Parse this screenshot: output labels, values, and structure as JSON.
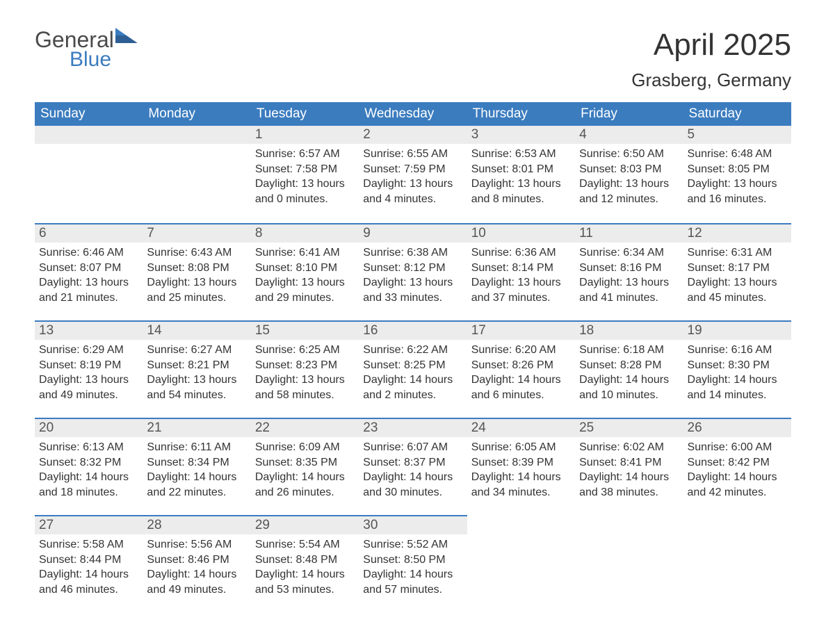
{
  "logo": {
    "general": "General",
    "blue": "Blue"
  },
  "title": "April 2025",
  "location": "Grasberg, Germany",
  "colors": {
    "header_bg": "#3b7cbf",
    "header_text": "#ffffff",
    "daynum_bg": "#ececec",
    "border_top": "#3b7cbf",
    "body_bg": "#ffffff",
    "text": "#333333"
  },
  "typography": {
    "title_fontsize": 44,
    "location_fontsize": 26,
    "weekday_fontsize": 19,
    "daynum_fontsize": 19,
    "body_fontsize": 16
  },
  "weekdays": [
    "Sunday",
    "Monday",
    "Tuesday",
    "Wednesday",
    "Thursday",
    "Friday",
    "Saturday"
  ],
  "weeks": [
    [
      null,
      null,
      {
        "n": "1",
        "sunrise": "Sunrise: 6:57 AM",
        "sunset": "Sunset: 7:58 PM",
        "dl1": "Daylight: 13 hours",
        "dl2": "and 0 minutes."
      },
      {
        "n": "2",
        "sunrise": "Sunrise: 6:55 AM",
        "sunset": "Sunset: 7:59 PM",
        "dl1": "Daylight: 13 hours",
        "dl2": "and 4 minutes."
      },
      {
        "n": "3",
        "sunrise": "Sunrise: 6:53 AM",
        "sunset": "Sunset: 8:01 PM",
        "dl1": "Daylight: 13 hours",
        "dl2": "and 8 minutes."
      },
      {
        "n": "4",
        "sunrise": "Sunrise: 6:50 AM",
        "sunset": "Sunset: 8:03 PM",
        "dl1": "Daylight: 13 hours",
        "dl2": "and 12 minutes."
      },
      {
        "n": "5",
        "sunrise": "Sunrise: 6:48 AM",
        "sunset": "Sunset: 8:05 PM",
        "dl1": "Daylight: 13 hours",
        "dl2": "and 16 minutes."
      }
    ],
    [
      {
        "n": "6",
        "sunrise": "Sunrise: 6:46 AM",
        "sunset": "Sunset: 8:07 PM",
        "dl1": "Daylight: 13 hours",
        "dl2": "and 21 minutes."
      },
      {
        "n": "7",
        "sunrise": "Sunrise: 6:43 AM",
        "sunset": "Sunset: 8:08 PM",
        "dl1": "Daylight: 13 hours",
        "dl2": "and 25 minutes."
      },
      {
        "n": "8",
        "sunrise": "Sunrise: 6:41 AM",
        "sunset": "Sunset: 8:10 PM",
        "dl1": "Daylight: 13 hours",
        "dl2": "and 29 minutes."
      },
      {
        "n": "9",
        "sunrise": "Sunrise: 6:38 AM",
        "sunset": "Sunset: 8:12 PM",
        "dl1": "Daylight: 13 hours",
        "dl2": "and 33 minutes."
      },
      {
        "n": "10",
        "sunrise": "Sunrise: 6:36 AM",
        "sunset": "Sunset: 8:14 PM",
        "dl1": "Daylight: 13 hours",
        "dl2": "and 37 minutes."
      },
      {
        "n": "11",
        "sunrise": "Sunrise: 6:34 AM",
        "sunset": "Sunset: 8:16 PM",
        "dl1": "Daylight: 13 hours",
        "dl2": "and 41 minutes."
      },
      {
        "n": "12",
        "sunrise": "Sunrise: 6:31 AM",
        "sunset": "Sunset: 8:17 PM",
        "dl1": "Daylight: 13 hours",
        "dl2": "and 45 minutes."
      }
    ],
    [
      {
        "n": "13",
        "sunrise": "Sunrise: 6:29 AM",
        "sunset": "Sunset: 8:19 PM",
        "dl1": "Daylight: 13 hours",
        "dl2": "and 49 minutes."
      },
      {
        "n": "14",
        "sunrise": "Sunrise: 6:27 AM",
        "sunset": "Sunset: 8:21 PM",
        "dl1": "Daylight: 13 hours",
        "dl2": "and 54 minutes."
      },
      {
        "n": "15",
        "sunrise": "Sunrise: 6:25 AM",
        "sunset": "Sunset: 8:23 PM",
        "dl1": "Daylight: 13 hours",
        "dl2": "and 58 minutes."
      },
      {
        "n": "16",
        "sunrise": "Sunrise: 6:22 AM",
        "sunset": "Sunset: 8:25 PM",
        "dl1": "Daylight: 14 hours",
        "dl2": "and 2 minutes."
      },
      {
        "n": "17",
        "sunrise": "Sunrise: 6:20 AM",
        "sunset": "Sunset: 8:26 PM",
        "dl1": "Daylight: 14 hours",
        "dl2": "and 6 minutes."
      },
      {
        "n": "18",
        "sunrise": "Sunrise: 6:18 AM",
        "sunset": "Sunset: 8:28 PM",
        "dl1": "Daylight: 14 hours",
        "dl2": "and 10 minutes."
      },
      {
        "n": "19",
        "sunrise": "Sunrise: 6:16 AM",
        "sunset": "Sunset: 8:30 PM",
        "dl1": "Daylight: 14 hours",
        "dl2": "and 14 minutes."
      }
    ],
    [
      {
        "n": "20",
        "sunrise": "Sunrise: 6:13 AM",
        "sunset": "Sunset: 8:32 PM",
        "dl1": "Daylight: 14 hours",
        "dl2": "and 18 minutes."
      },
      {
        "n": "21",
        "sunrise": "Sunrise: 6:11 AM",
        "sunset": "Sunset: 8:34 PM",
        "dl1": "Daylight: 14 hours",
        "dl2": "and 22 minutes."
      },
      {
        "n": "22",
        "sunrise": "Sunrise: 6:09 AM",
        "sunset": "Sunset: 8:35 PM",
        "dl1": "Daylight: 14 hours",
        "dl2": "and 26 minutes."
      },
      {
        "n": "23",
        "sunrise": "Sunrise: 6:07 AM",
        "sunset": "Sunset: 8:37 PM",
        "dl1": "Daylight: 14 hours",
        "dl2": "and 30 minutes."
      },
      {
        "n": "24",
        "sunrise": "Sunrise: 6:05 AM",
        "sunset": "Sunset: 8:39 PM",
        "dl1": "Daylight: 14 hours",
        "dl2": "and 34 minutes."
      },
      {
        "n": "25",
        "sunrise": "Sunrise: 6:02 AM",
        "sunset": "Sunset: 8:41 PM",
        "dl1": "Daylight: 14 hours",
        "dl2": "and 38 minutes."
      },
      {
        "n": "26",
        "sunrise": "Sunrise: 6:00 AM",
        "sunset": "Sunset: 8:42 PM",
        "dl1": "Daylight: 14 hours",
        "dl2": "and 42 minutes."
      }
    ],
    [
      {
        "n": "27",
        "sunrise": "Sunrise: 5:58 AM",
        "sunset": "Sunset: 8:44 PM",
        "dl1": "Daylight: 14 hours",
        "dl2": "and 46 minutes."
      },
      {
        "n": "28",
        "sunrise": "Sunrise: 5:56 AM",
        "sunset": "Sunset: 8:46 PM",
        "dl1": "Daylight: 14 hours",
        "dl2": "and 49 minutes."
      },
      {
        "n": "29",
        "sunrise": "Sunrise: 5:54 AM",
        "sunset": "Sunset: 8:48 PM",
        "dl1": "Daylight: 14 hours",
        "dl2": "and 53 minutes."
      },
      {
        "n": "30",
        "sunrise": "Sunrise: 5:52 AM",
        "sunset": "Sunset: 8:50 PM",
        "dl1": "Daylight: 14 hours",
        "dl2": "and 57 minutes."
      },
      null,
      null,
      null
    ]
  ]
}
